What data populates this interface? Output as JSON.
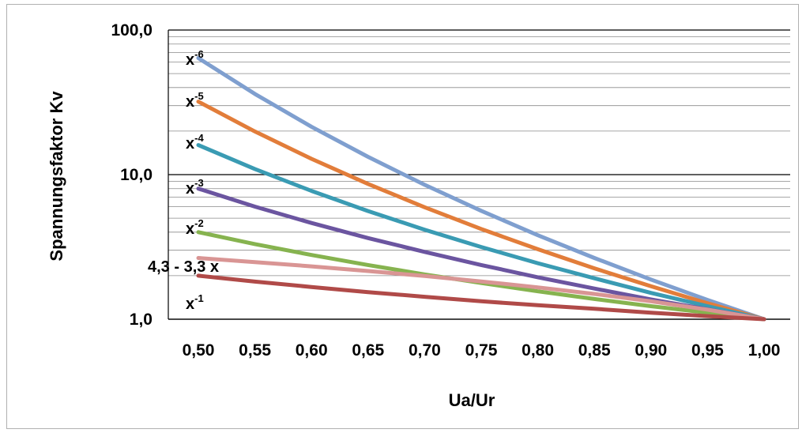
{
  "chart_data": {
    "type": "line",
    "title": "",
    "xlabel": "Ua/Ur",
    "ylabel": "Spannungsfaktor Kv",
    "xlim": [
      0.5,
      1.0
    ],
    "ylim": [
      1,
      100
    ],
    "yscale": "log",
    "x_ticks": [
      "0,50",
      "0,55",
      "0,60",
      "0,65",
      "0,70",
      "0,75",
      "0,80",
      "0,85",
      "0,90",
      "0,95",
      "1,00"
    ],
    "y_ticks": [
      "1,0",
      "10,0",
      "100,0"
    ],
    "grid": true,
    "legend": "none",
    "x": [
      0.5,
      0.55,
      0.6,
      0.65,
      0.7,
      0.75,
      0.8,
      0.85,
      0.9,
      0.95,
      1.0
    ],
    "series": [
      {
        "label_base": "x",
        "label_exp": "-6",
        "color": "#7f9fcf",
        "values": [
          64.0,
          36.13,
          21.43,
          13.27,
          8.5,
          5.62,
          3.81,
          2.65,
          1.88,
          1.36,
          1.0
        ]
      },
      {
        "label_base": "x",
        "label_exp": "-5",
        "color": "#e27d3a",
        "values": [
          32.0,
          19.87,
          12.86,
          8.62,
          5.95,
          4.21,
          3.05,
          2.25,
          1.69,
          1.29,
          1.0
        ]
      },
      {
        "label_base": "x",
        "label_exp": "-4",
        "color": "#3a9bb3",
        "values": [
          16.0,
          10.93,
          7.72,
          5.6,
          4.16,
          3.16,
          2.44,
          1.92,
          1.52,
          1.23,
          1.0
        ]
      },
      {
        "label_base": "x",
        "label_exp": "-3",
        "color": "#6b55a0",
        "values": [
          8.0,
          6.01,
          4.63,
          3.64,
          2.92,
          2.37,
          1.95,
          1.63,
          1.37,
          1.17,
          1.0
        ]
      },
      {
        "label_base": "x",
        "label_exp": "-2",
        "color": "#86b34f",
        "values": [
          4.0,
          3.31,
          2.78,
          2.37,
          2.04,
          1.78,
          1.56,
          1.38,
          1.23,
          1.11,
          1.0
        ]
      },
      {
        "label_base": "4,3 - 3,3 x",
        "label_exp": "",
        "color": "#d99594",
        "values": [
          2.65,
          2.485,
          2.32,
          2.155,
          1.99,
          1.825,
          1.66,
          1.495,
          1.33,
          1.165,
          1.0
        ]
      },
      {
        "label_base": "x",
        "label_exp": "-1",
        "color": "#b04a48",
        "values": [
          2.0,
          1.82,
          1.67,
          1.54,
          1.43,
          1.33,
          1.25,
          1.18,
          1.11,
          1.05,
          1.0
        ]
      }
    ]
  }
}
